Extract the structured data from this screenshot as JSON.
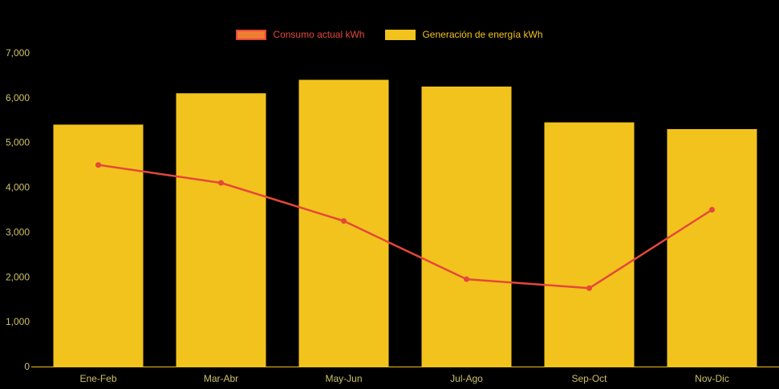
{
  "chart_data": {
    "type": "bar",
    "subtype": "bar-and-line-combo",
    "categories": [
      "Ene-Feb",
      "Mar-Abr",
      "May-Jun",
      "Jul-Ago",
      "Sep-Oct",
      "Nov-Dic"
    ],
    "series": [
      {
        "name": "Consumo actual kWh",
        "type": "line",
        "color": "#E5473B",
        "swatch_fill": "#ED7D31",
        "values": [
          4500,
          4100,
          3250,
          1950,
          1750,
          3500
        ]
      },
      {
        "name": "Generación de energía kWh",
        "type": "bar",
        "color": "#F2C31C",
        "swatch_fill": "#F2C31C",
        "values": [
          5400,
          6100,
          6400,
          6250,
          5450,
          5300
        ]
      }
    ],
    "title": "",
    "xlabel": "",
    "ylabel": "",
    "ylim": [
      0,
      7000
    ],
    "ytick_step": 1000,
    "ytick_labels": [
      "0",
      "1,000",
      "2,000",
      "3,000",
      "4,000",
      "5,000",
      "6,000",
      "7,000"
    ],
    "grid": false,
    "legend_position": "top-center",
    "background_color": "#000000",
    "axis_text_color": "#CDC06A",
    "axis_line_color": "#F2C31C"
  }
}
